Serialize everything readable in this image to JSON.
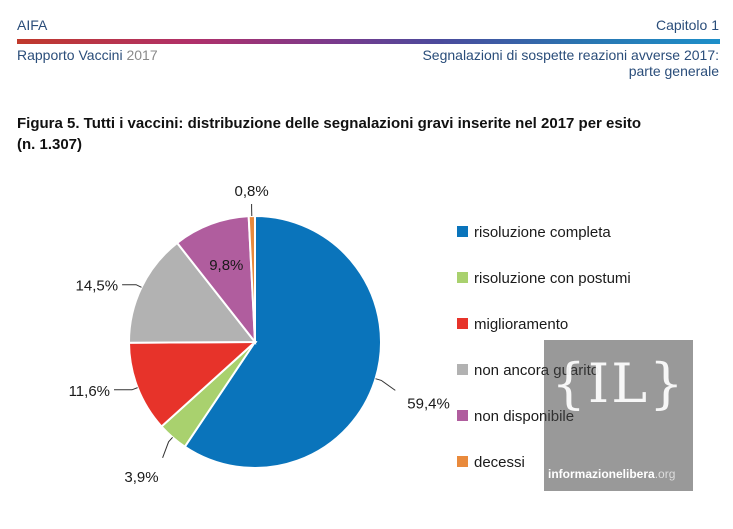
{
  "header": {
    "left_top": "AIFA",
    "right_top": "Capitolo 1",
    "left_bottom_main": "Rapporto Vaccini",
    "left_bottom_year": "2017",
    "right_bottom_line1": "Segnalazioni di sospette reazioni avverse 2017:",
    "right_bottom_line2": "parte generale"
  },
  "figure": {
    "title_line1": "Figura 5. Tutti i vaccini: distribuzione delle segnalazioni gravi inserite nel 2017 per esito",
    "title_line2": "(n. 1.307)"
  },
  "watermark": {
    "logo": "{IL}",
    "text_main": "informazionelibera",
    "text_tld": ".org"
  },
  "colors": {
    "risoluzione completa": "#0a74bb",
    "risoluzione con postumi": "#a9d16e",
    "miglioramento": "#e7332a",
    "non ancora guarito": "#b2b2b2",
    "non disponibile": "#b05d9e",
    "decessi": "#e98a3c"
  },
  "chart_data": {
    "type": "pie",
    "categories": [
      "risoluzione completa",
      "risoluzione con postumi",
      "miglioramento",
      "non ancora guarito",
      "non disponibile",
      "decessi"
    ],
    "values": [
      59.4,
      3.9,
      11.6,
      14.5,
      9.8,
      0.8
    ],
    "labels": [
      "59,4%",
      "3,9%",
      "11,6%",
      "14,5%",
      "9,8%",
      "0,8%"
    ],
    "legend_position": "right"
  }
}
